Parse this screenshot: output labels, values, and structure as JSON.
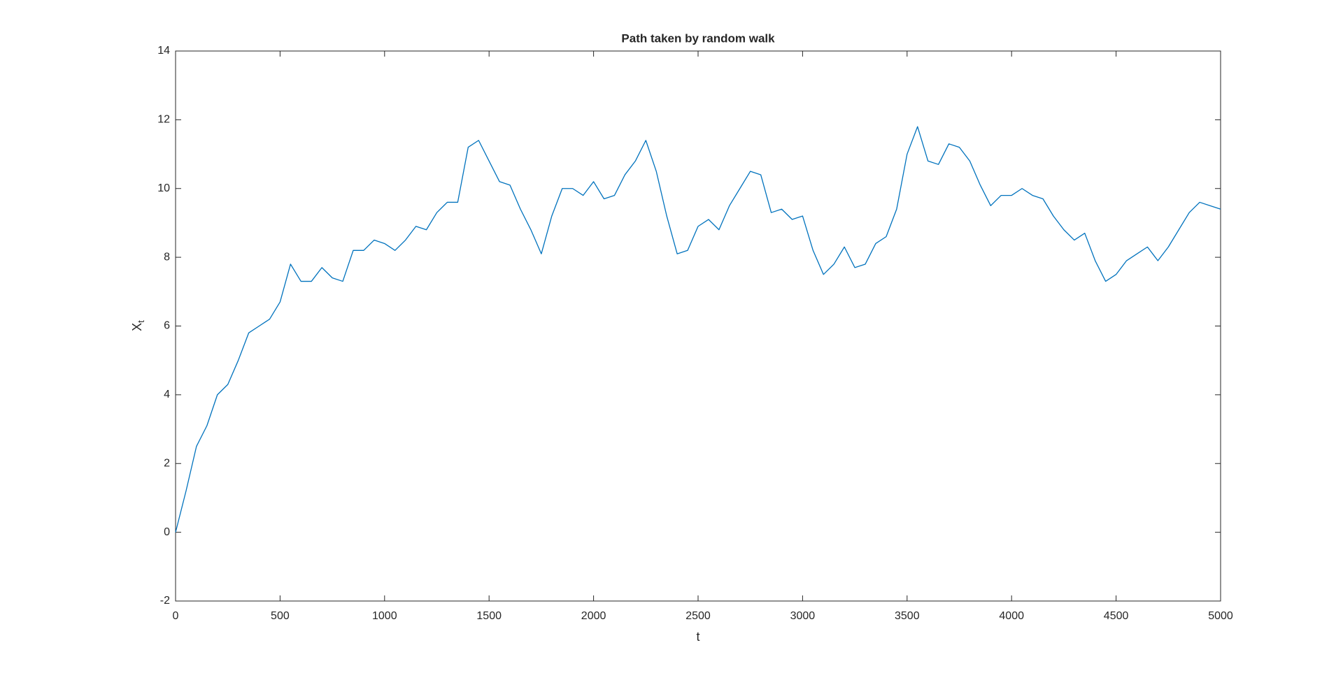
{
  "chart_data": {
    "type": "line",
    "title": "Path taken by random walk",
    "x_label": "t",
    "y_label": {
      "base": "X",
      "subscript": "t"
    },
    "x": [
      0,
      50,
      100,
      150,
      200,
      250,
      300,
      350,
      400,
      450,
      500,
      550,
      600,
      650,
      700,
      750,
      800,
      850,
      900,
      950,
      1000,
      1050,
      1100,
      1150,
      1200,
      1250,
      1300,
      1350,
      1400,
      1450,
      1500,
      1550,
      1600,
      1650,
      1700,
      1750,
      1800,
      1850,
      1900,
      1950,
      2000,
      2050,
      2100,
      2150,
      2200,
      2250,
      2300,
      2350,
      2400,
      2450,
      2500,
      2550,
      2600,
      2650,
      2700,
      2750,
      2800,
      2850,
      2900,
      2950,
      3000,
      3050,
      3100,
      3150,
      3200,
      3250,
      3300,
      3350,
      3400,
      3450,
      3500,
      3550,
      3600,
      3650,
      3700,
      3750,
      3800,
      3850,
      3900,
      3950,
      4000,
      4050,
      4100,
      4150,
      4200,
      4250,
      4300,
      4350,
      4400,
      4450,
      4500,
      4550,
      4600,
      4650,
      4700,
      4750,
      4800,
      4850,
      4900,
      4950,
      5000
    ],
    "series": [
      {
        "color": "#0072bd",
        "values": [
          0,
          1.2,
          2.5,
          3.1,
          4.0,
          4.3,
          5.0,
          5.8,
          6.0,
          6.2,
          6.7,
          7.8,
          7.3,
          7.3,
          7.7,
          7.4,
          7.3,
          8.2,
          8.2,
          8.5,
          8.4,
          8.2,
          8.5,
          8.9,
          8.8,
          9.3,
          9.6,
          9.6,
          11.2,
          11.4,
          10.8,
          10.2,
          10.1,
          9.4,
          8.8,
          8.1,
          9.2,
          10.0,
          10.0,
          9.8,
          10.2,
          9.7,
          9.8,
          10.4,
          10.8,
          11.4,
          10.5,
          9.2,
          8.1,
          8.2,
          8.9,
          9.1,
          8.8,
          9.5,
          10.0,
          10.5,
          10.4,
          9.3,
          9.4,
          9.1,
          9.2,
          8.2,
          7.5,
          7.8,
          8.3,
          7.7,
          7.8,
          8.4,
          8.6,
          9.4,
          11.0,
          11.8,
          10.8,
          10.7,
          11.3,
          11.2,
          10.8,
          10.1,
          9.5,
          9.8,
          9.8,
          10.0,
          9.8,
          9.7,
          9.2,
          8.8,
          8.5,
          8.7,
          7.9,
          7.3,
          7.5,
          7.9,
          8.1,
          8.3,
          7.9,
          8.3,
          8.8,
          9.3,
          9.6,
          9.5,
          9.4
        ]
      }
    ],
    "xlim": [
      0,
      5000
    ],
    "xticks": [
      0,
      500,
      1000,
      1500,
      2000,
      2500,
      3000,
      3500,
      4000,
      4500,
      5000
    ],
    "ylim": [
      -2,
      14
    ],
    "yticks": [
      -2,
      0,
      2,
      4,
      6,
      8,
      10,
      12,
      14
    ],
    "grid": false
  }
}
